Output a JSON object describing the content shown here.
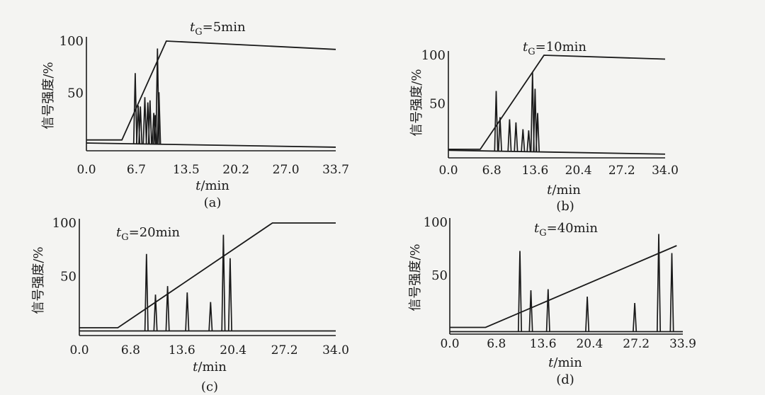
{
  "panels": [
    {
      "label": "(a)",
      "title_prefix": "t",
      "title_sub": "G",
      "title_suffix": "=5min",
      "ylabel": "信号强度/%",
      "xlabel_italic": "t",
      "xlabel_rest": "/min",
      "chart_data": {
        "type": "line",
        "x_ticks": [
          "0.0",
          "6.7",
          "13.5",
          "20.2",
          "27.0",
          "33.7"
        ],
        "y_ticks": [
          "50",
          "100"
        ],
        "xlim": [
          0,
          33.7
        ],
        "ylim": [
          0,
          100
        ],
        "gradient": {
          "x": [
            0,
            4.8,
            10.8,
            33.7
          ],
          "y": [
            5,
            5,
            100,
            92
          ]
        },
        "baseline": {
          "x": [
            0,
            33.7
          ],
          "y": [
            2,
            -2
          ]
        },
        "peaks": [
          {
            "x": 6.6,
            "h": 68
          },
          {
            "x": 7.0,
            "h": 37
          },
          {
            "x": 7.3,
            "h": 36
          },
          {
            "x": 7.9,
            "h": 45
          },
          {
            "x": 8.3,
            "h": 40
          },
          {
            "x": 8.6,
            "h": 42
          },
          {
            "x": 9.1,
            "h": 30
          },
          {
            "x": 9.3,
            "h": 28
          },
          {
            "x": 9.6,
            "h": 92
          },
          {
            "x": 9.8,
            "h": 50
          }
        ]
      }
    },
    {
      "label": "(b)",
      "title_prefix": "t",
      "title_sub": "G",
      "title_suffix": "=10min",
      "ylabel": "信号强度/%",
      "xlabel_italic": "t",
      "xlabel_rest": "/min",
      "chart_data": {
        "type": "line",
        "x_ticks": [
          "0.0",
          "6.8",
          "13.6",
          "20.4",
          "27.2",
          "34.0"
        ],
        "y_ticks": [
          "50",
          "100"
        ],
        "xlim": [
          0,
          34
        ],
        "ylim": [
          0,
          100
        ],
        "gradient": {
          "x": [
            0,
            5.0,
            15.0,
            34.0
          ],
          "y": [
            3,
            3,
            100,
            96
          ]
        },
        "baseline": {
          "x": [
            0,
            34.0
          ],
          "y": [
            2,
            -2
          ]
        },
        "peaks": [
          {
            "x": 7.5,
            "h": 62
          },
          {
            "x": 8.1,
            "h": 35
          },
          {
            "x": 9.6,
            "h": 33
          },
          {
            "x": 10.6,
            "h": 30
          },
          {
            "x": 11.7,
            "h": 23
          },
          {
            "x": 12.6,
            "h": 22
          },
          {
            "x": 13.2,
            "h": 82
          },
          {
            "x": 13.6,
            "h": 65
          },
          {
            "x": 14.0,
            "h": 40
          }
        ]
      }
    },
    {
      "label": "(c)",
      "title_prefix": "t",
      "title_sub": "G",
      "title_suffix": "=20min",
      "ylabel": "信号强度/%",
      "xlabel_italic": "t",
      "xlabel_rest": "/min",
      "chart_data": {
        "type": "line",
        "x_ticks": [
          "0.0",
          "6.8",
          "13.6",
          "20.4",
          "27.2",
          "34.0"
        ],
        "y_ticks": [
          "50",
          "100"
        ],
        "xlim": [
          0,
          34
        ],
        "ylim": [
          0,
          100
        ],
        "gradient": {
          "x": [
            0,
            5.1,
            25.6,
            34.0
          ],
          "y": [
            2,
            2,
            100,
            100
          ]
        },
        "baseline": {
          "x": [
            0,
            34.0
          ],
          "y": [
            -1,
            -1
          ]
        },
        "peaks": [
          {
            "x": 8.9,
            "h": 72
          },
          {
            "x": 10.1,
            "h": 34
          },
          {
            "x": 11.7,
            "h": 42
          },
          {
            "x": 14.3,
            "h": 36
          },
          {
            "x": 17.4,
            "h": 27
          },
          {
            "x": 19.1,
            "h": 90
          },
          {
            "x": 20.0,
            "h": 68
          }
        ]
      }
    },
    {
      "label": "(d)",
      "title_prefix": "t",
      "title_sub": "G",
      "title_suffix": "=40min",
      "ylabel": "信号强度/%",
      "xlabel_italic": "t",
      "xlabel_rest": "/min",
      "chart_data": {
        "type": "line",
        "x_ticks": [
          "0.0",
          "6.8",
          "13.6",
          "20.4",
          "27.2",
          "33.9"
        ],
        "y_ticks": [
          "50",
          "100"
        ],
        "xlim": [
          0,
          33.9
        ],
        "ylim": [
          0,
          100
        ],
        "gradient": {
          "x": [
            0,
            5.2,
            33.0
          ],
          "y": [
            1,
            1,
            78
          ]
        },
        "baseline": {
          "x": [
            0,
            33.9
          ],
          "y": [
            -3,
            -3
          ]
        },
        "peaks": [
          {
            "x": 10.2,
            "h": 76
          },
          {
            "x": 11.8,
            "h": 39
          },
          {
            "x": 14.3,
            "h": 40
          },
          {
            "x": 20.0,
            "h": 33
          },
          {
            "x": 26.9,
            "h": 27
          },
          {
            "x": 30.4,
            "h": 92
          },
          {
            "x": 32.3,
            "h": 74
          }
        ]
      }
    }
  ]
}
